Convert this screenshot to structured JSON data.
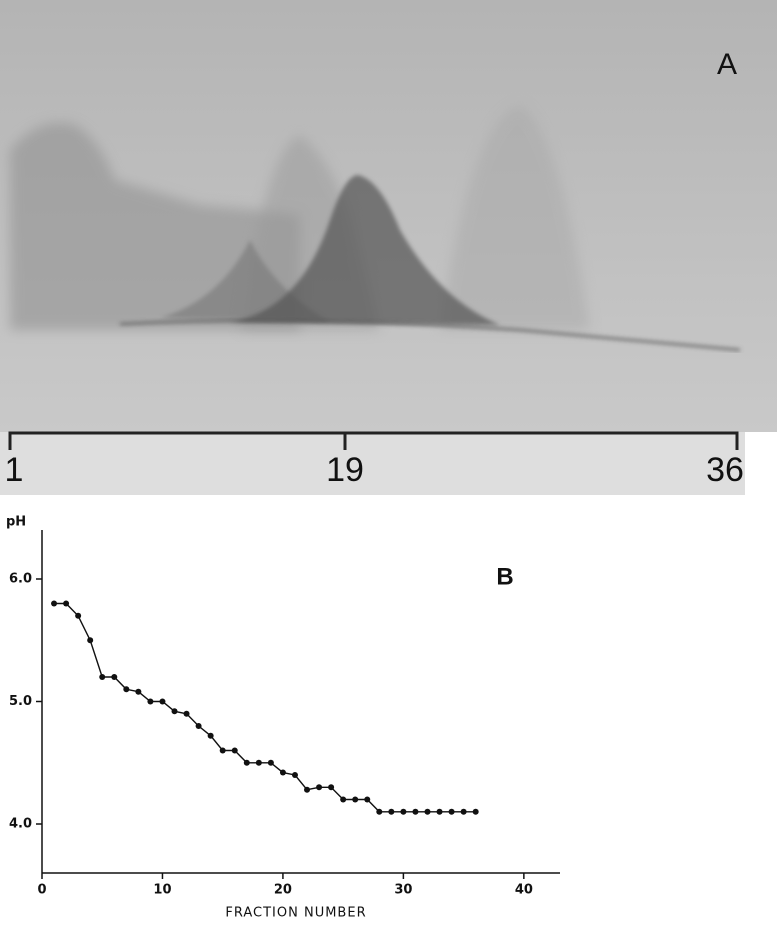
{
  "panel_a": {
    "label": "A",
    "scale_labels": [
      "1",
      "19",
      "36"
    ]
  },
  "chart_data": {
    "type": "line",
    "panel_label": "B",
    "xlabel": "FRACTION NUMBER",
    "ylabel": "pH",
    "x": [
      1,
      2,
      3,
      4,
      5,
      6,
      7,
      8,
      9,
      10,
      11,
      12,
      13,
      14,
      15,
      16,
      17,
      18,
      19,
      20,
      21,
      22,
      23,
      24,
      25,
      26,
      27,
      28,
      29,
      30,
      31,
      32,
      33,
      34,
      35,
      36
    ],
    "series": [
      {
        "color": "#111111",
        "values": [
          5.8,
          5.8,
          5.7,
          5.5,
          5.2,
          5.2,
          5.1,
          5.08,
          5.0,
          5.0,
          4.92,
          4.9,
          4.8,
          4.72,
          4.6,
          4.6,
          4.5,
          4.5,
          4.5,
          4.42,
          4.4,
          4.28,
          4.3,
          4.3,
          4.2,
          4.2,
          4.2,
          4.1,
          4.1,
          4.1,
          4.1,
          4.1,
          4.1,
          4.1,
          4.1,
          4.1
        ]
      }
    ],
    "xlim": [
      0,
      43
    ],
    "xticks": [
      0,
      10,
      20,
      30,
      40
    ],
    "ylim": [
      3.6,
      6.4
    ],
    "yticks": [
      {
        "value": 6,
        "label": "6.0"
      },
      {
        "value": 5,
        "label": "5.0"
      },
      {
        "value": 4,
        "label": "4.0"
      }
    ]
  }
}
